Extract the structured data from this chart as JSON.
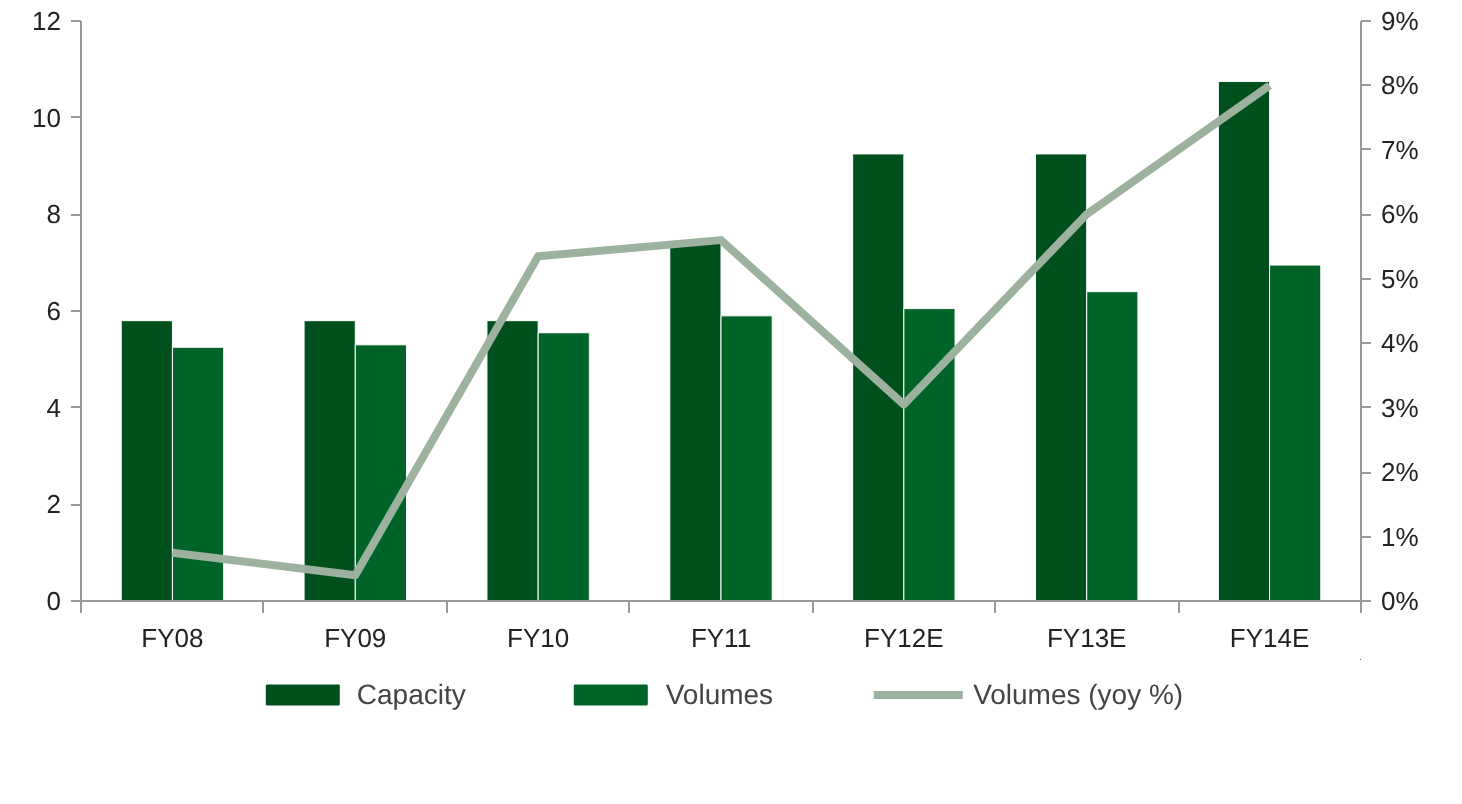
{
  "chart_data": {
    "type": "bar",
    "categories": [
      "FY08",
      "FY09",
      "FY10",
      "FY11",
      "FY12E",
      "FY13E",
      "FY14E"
    ],
    "series": [
      {
        "name": "Capacity",
        "color": "#00501e",
        "values": [
          5.8,
          5.8,
          5.8,
          7.45,
          9.25,
          9.25,
          10.75
        ]
      },
      {
        "name": "Volumes",
        "color": "#006428",
        "values": [
          5.25,
          5.3,
          5.55,
          5.9,
          6.05,
          6.4,
          6.95
        ]
      },
      {
        "name": "Volumes (yoy %)",
        "type": "line",
        "axis": "y2",
        "color": "#9cb29e",
        "values": [
          0.75,
          0.4,
          5.35,
          5.6,
          3.05,
          6.0,
          8.0
        ]
      }
    ],
    "ylim": [
      0,
      12
    ],
    "yticks": [
      0,
      2,
      4,
      6,
      8,
      10,
      12
    ],
    "y2lim": [
      0,
      9
    ],
    "y2ticks": [
      {
        "value": 0,
        "label": "0%"
      },
      {
        "value": 1,
        "label": "1%"
      },
      {
        "value": 2,
        "label": "2%"
      },
      {
        "value": 3,
        "label": "3%"
      },
      {
        "value": 4,
        "label": "4%"
      },
      {
        "value": 5,
        "label": "5%"
      },
      {
        "value": 6,
        "label": "6%"
      },
      {
        "value": 7,
        "label": "7%"
      },
      {
        "value": 8,
        "label": "8%"
      },
      {
        "value": 9,
        "label": "9%"
      }
    ],
    "grid": false,
    "legend": "bottom",
    "marker": "none",
    "line_style": "solid"
  }
}
